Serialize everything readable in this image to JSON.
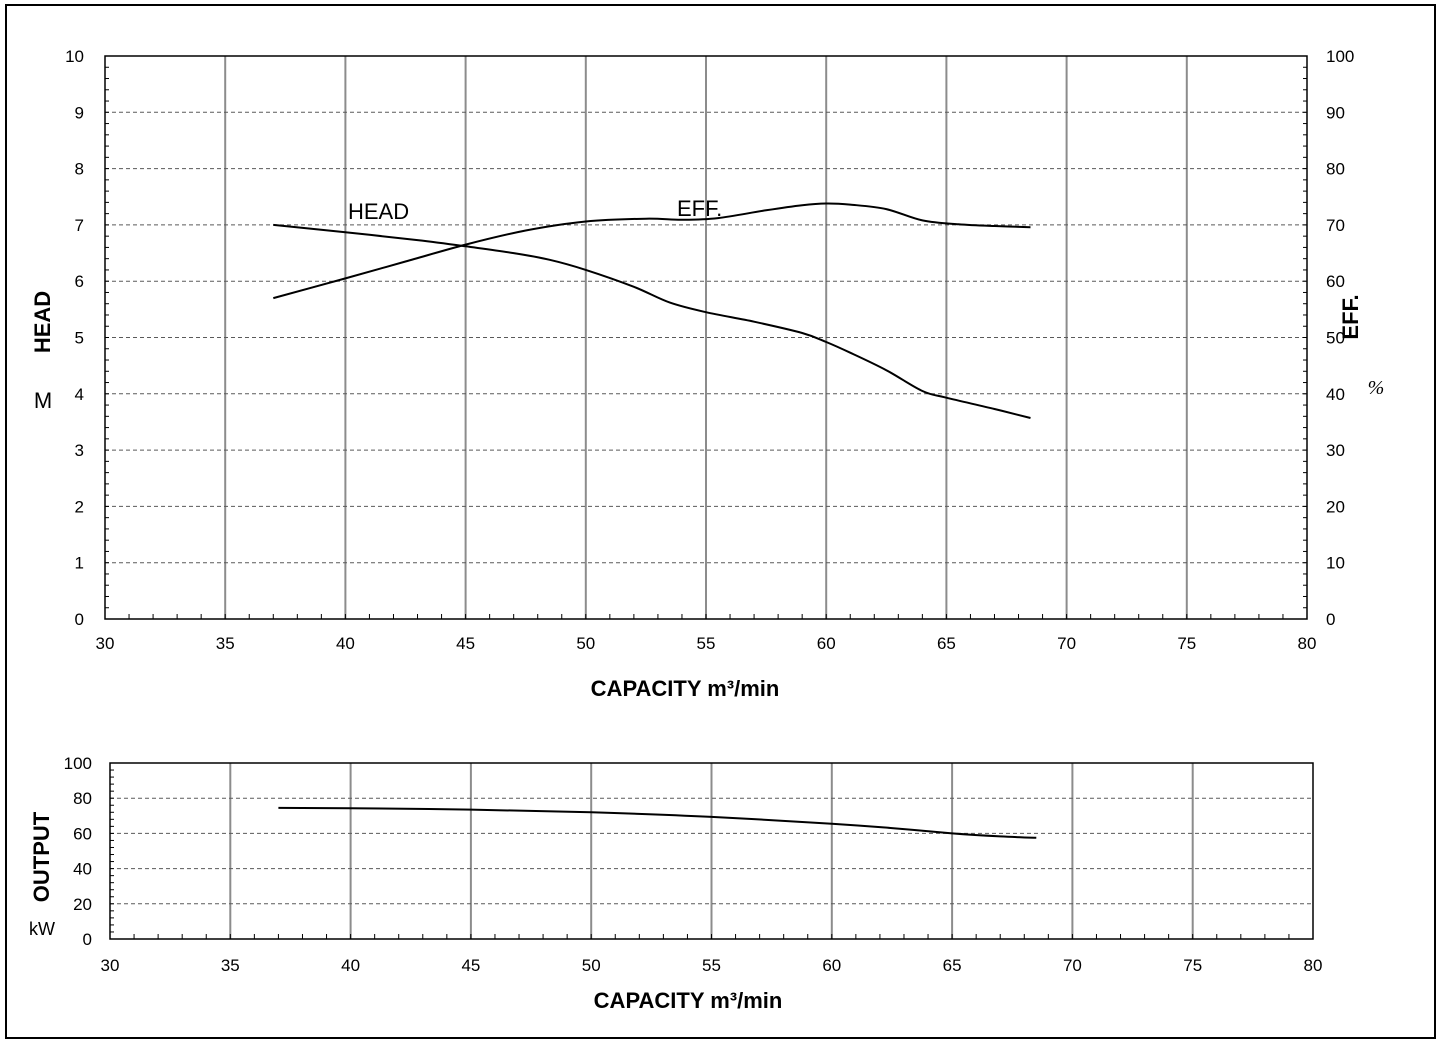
{
  "chart_data": [
    {
      "type": "line",
      "xlabel": "CAPACITY m³/min",
      "ylabel": "HEAD",
      "ylabel_unit": "M",
      "y2label": "EFF.",
      "y2label_unit": "%",
      "xlim": [
        30,
        80
      ],
      "ylim": [
        0,
        10
      ],
      "y2lim": [
        0,
        100
      ],
      "x_ticks": [
        "30",
        "35",
        "40",
        "45",
        "50",
        "55",
        "60",
        "65",
        "70",
        "75",
        "80"
      ],
      "y_ticks": [
        "0",
        "1",
        "2",
        "3",
        "4",
        "5",
        "6",
        "7",
        "8",
        "9",
        "10"
      ],
      "y2_ticks": [
        "0",
        "10",
        "20",
        "30",
        "40",
        "50",
        "60",
        "70",
        "80",
        "90",
        "100"
      ],
      "grid": true,
      "series": [
        {
          "name": "HEAD",
          "axis": "left",
          "points": [
            [
              37,
              7.0
            ],
            [
              40,
              6.87
            ],
            [
              43,
              6.73
            ],
            [
              45,
              6.62
            ],
            [
              47,
              6.5
            ],
            [
              48.5,
              6.38
            ],
            [
              50,
              6.2
            ],
            [
              52,
              5.9
            ],
            [
              53.5,
              5.62
            ],
            [
              55,
              5.45
            ],
            [
              57,
              5.28
            ],
            [
              59,
              5.08
            ],
            [
              60,
              4.92
            ],
            [
              61,
              4.73
            ],
            [
              62.5,
              4.42
            ],
            [
              64,
              4.05
            ],
            [
              65,
              3.93
            ],
            [
              67,
              3.73
            ],
            [
              68.5,
              3.57
            ]
          ]
        },
        {
          "name": "EFF.",
          "axis": "right",
          "points": [
            [
              37,
              57
            ],
            [
              40,
              60.5
            ],
            [
              42.5,
              63.5
            ],
            [
              45,
              66.5
            ],
            [
              47.5,
              69
            ],
            [
              50,
              70.6
            ],
            [
              52.5,
              71.1
            ],
            [
              54,
              70.9
            ],
            [
              55.5,
              71.2
            ],
            [
              57.5,
              72.6
            ],
            [
              59,
              73.5
            ],
            [
              60,
              73.8
            ],
            [
              61,
              73.6
            ],
            [
              62.5,
              72.8
            ],
            [
              64,
              70.8
            ],
            [
              65.5,
              70.1
            ],
            [
              67,
              69.8
            ],
            [
              68.5,
              69.6
            ]
          ]
        }
      ]
    },
    {
      "type": "line",
      "xlabel": "CAPACITY m³/min",
      "ylabel": "OUTPUT",
      "ylabel_unit": "kW",
      "xlim": [
        30,
        80
      ],
      "ylim": [
        0,
        100
      ],
      "x_ticks": [
        "30",
        "35",
        "40",
        "45",
        "50",
        "55",
        "60",
        "65",
        "70",
        "75",
        "80"
      ],
      "y_ticks": [
        "0",
        "20",
        "40",
        "60",
        "80",
        "100"
      ],
      "grid": true,
      "series": [
        {
          "axis": "left",
          "points": [
            [
              37,
              74.5
            ],
            [
              40,
              74.3
            ],
            [
              45,
              73.5
            ],
            [
              50,
              72
            ],
            [
              55,
              69.4
            ],
            [
              60,
              65.5
            ],
            [
              62.5,
              63
            ],
            [
              65,
              60
            ],
            [
              67,
              58.3
            ],
            [
              68.5,
              57.5
            ]
          ]
        }
      ]
    }
  ]
}
